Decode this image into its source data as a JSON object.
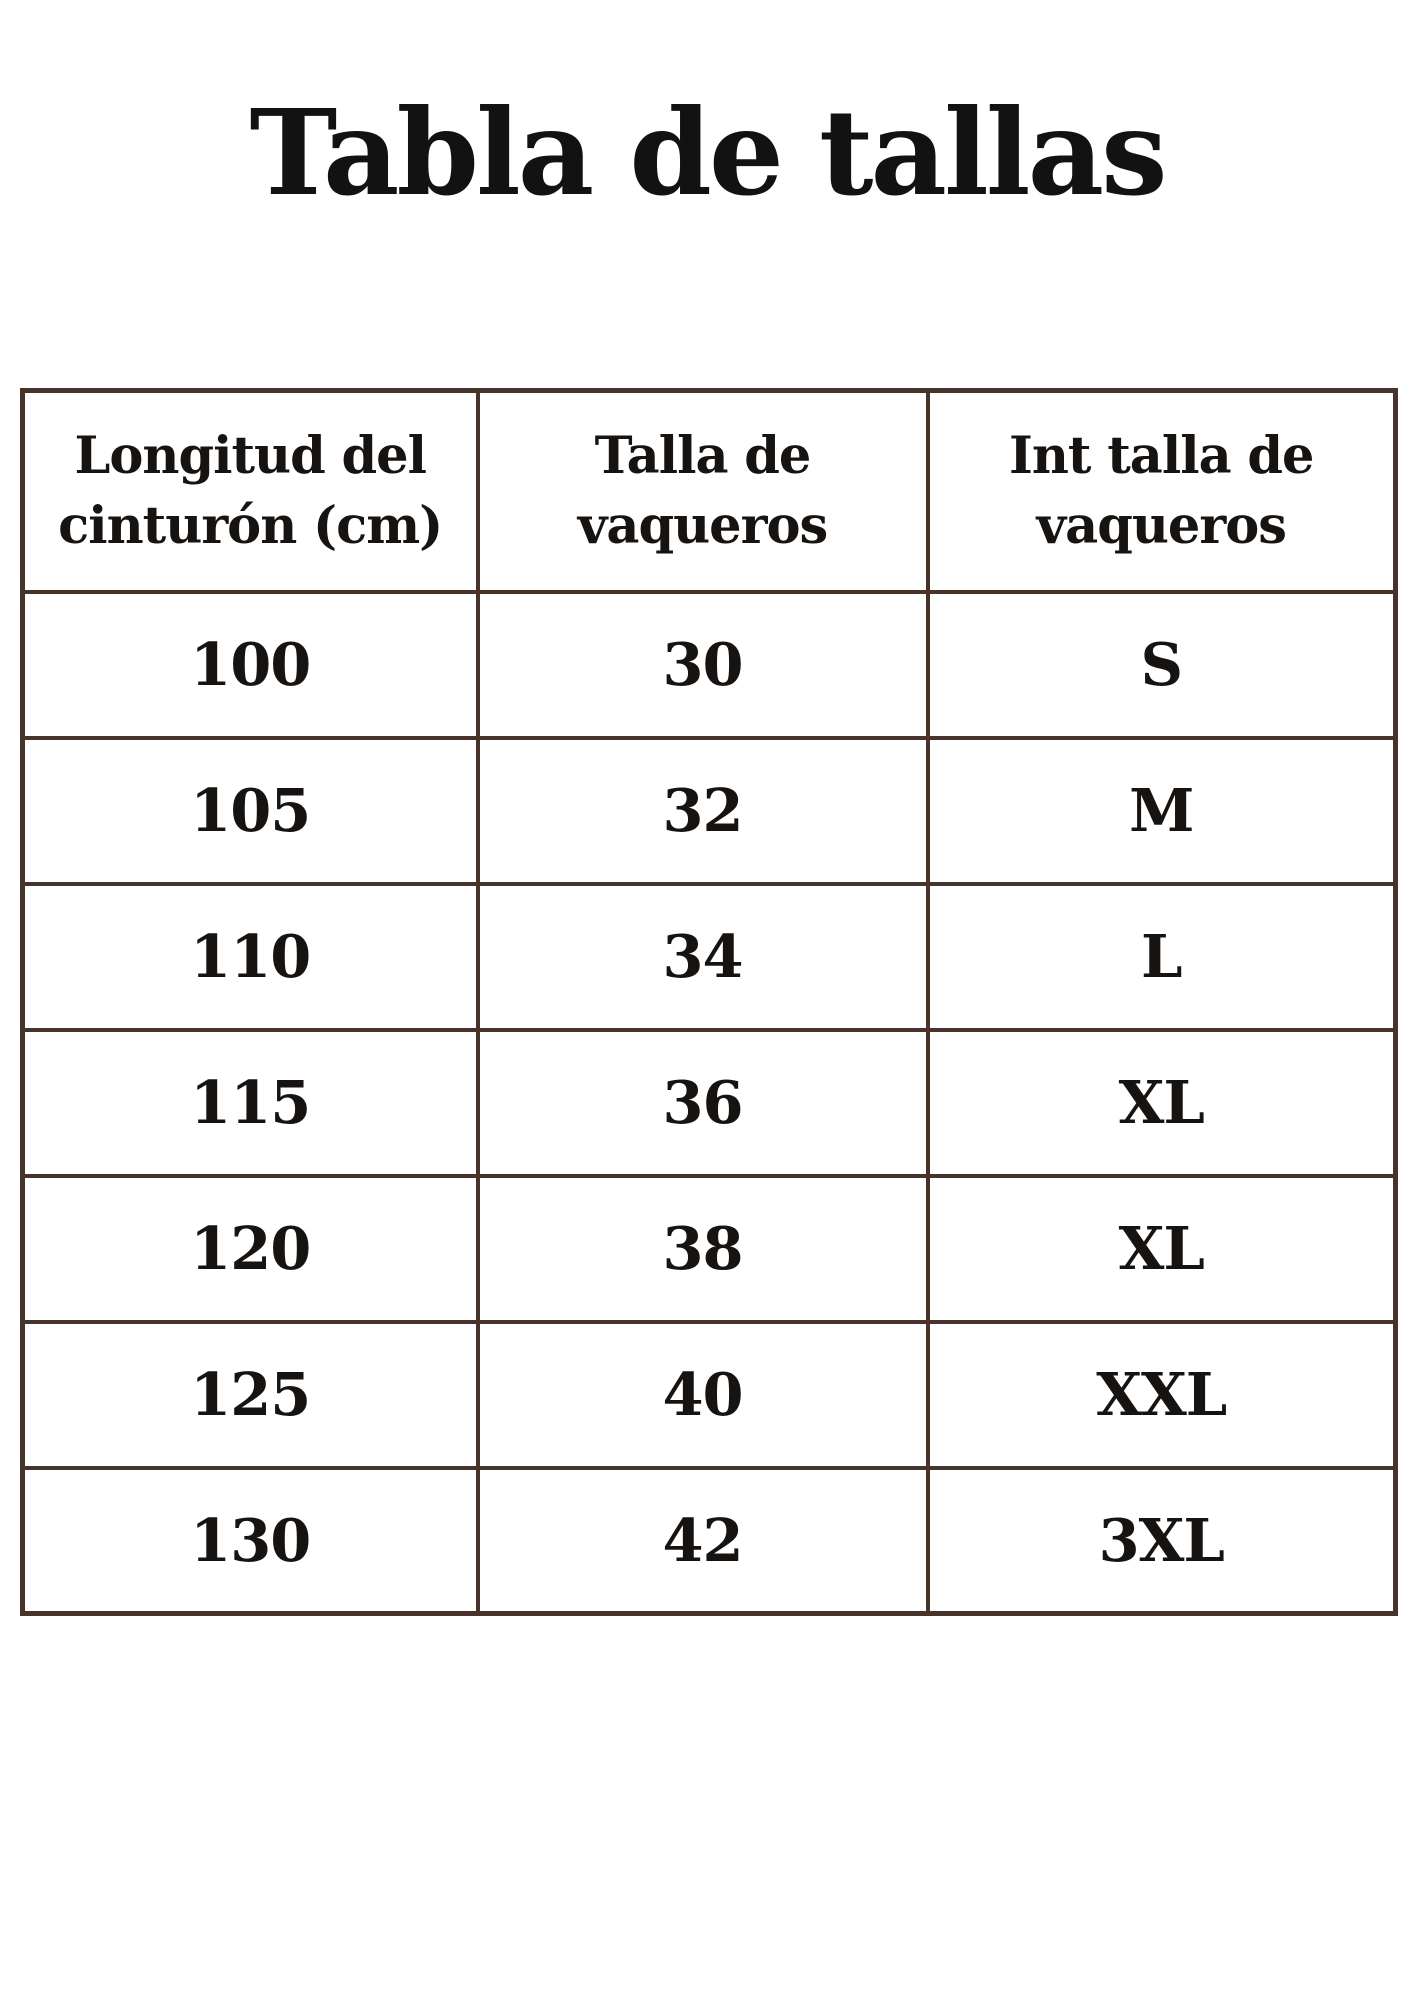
{
  "colors": {
    "background": "#ffffff",
    "table_border": "#47332a",
    "text": "#171310"
  },
  "chart_data": {
    "type": "table",
    "title": "Tabla de tallas",
    "columns": [
      "Longitud del cinturón (cm)",
      "Talla de vaqueros",
      "Int talla de vaqueros"
    ],
    "rows": [
      [
        "100",
        "30",
        "S"
      ],
      [
        "105",
        "32",
        "M"
      ],
      [
        "110",
        "34",
        "L"
      ],
      [
        "115",
        "36",
        "XL"
      ],
      [
        "120",
        "38",
        "XL"
      ],
      [
        "125",
        "40",
        "XXL"
      ],
      [
        "130",
        "42",
        "3XL"
      ]
    ]
  },
  "header_lines": [
    [
      "Longitud del",
      "cinturón (cm)"
    ],
    [
      "Talla de",
      "vaqueros"
    ],
    [
      "Int talla de",
      "vaqueros"
    ]
  ]
}
